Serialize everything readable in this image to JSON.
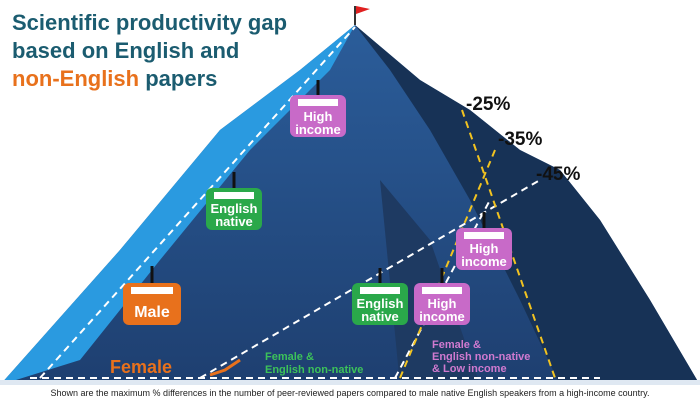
{
  "title": {
    "line1": "Scientific productivity gap",
    "line2": "based on English and",
    "highlight": "non-English",
    "rest": "papers"
  },
  "gaps": [
    "-25%",
    "-35%",
    "-45%"
  ],
  "cabins": [
    [
      "High",
      "income"
    ],
    [
      "English",
      "native"
    ],
    [
      "Male"
    ],
    [
      "English",
      "native"
    ],
    [
      "High",
      "income"
    ],
    [
      "High",
      "income"
    ]
  ],
  "climbers": [
    [
      "Female"
    ],
    [
      "Female &",
      "English non-native"
    ],
    [
      "Female &",
      "English non-native",
      "& Low income"
    ]
  ],
  "footnote": "Shown are the maximum % differences in the number of peer-reviewed papers compared to male native English speakers from a high-income country."
}
